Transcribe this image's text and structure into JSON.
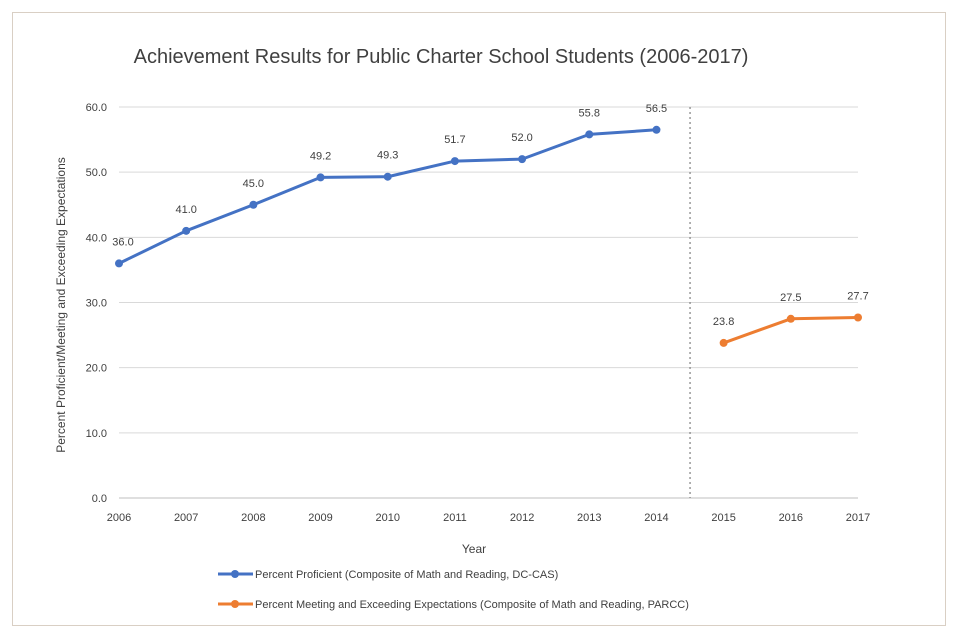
{
  "chart_data": {
    "type": "line",
    "title": "Achievement Results for Public Charter School Students (2006-2017)",
    "xlabel": "Year",
    "ylabel": "Percent Proficient/Meeting and Exceeding Expectations",
    "ylim": [
      0,
      60
    ],
    "yticks": [
      "0.0",
      "10.0",
      "20.0",
      "30.0",
      "40.0",
      "50.0",
      "60.0"
    ],
    "categories": [
      "2006",
      "2007",
      "2008",
      "2009",
      "2010",
      "2011",
      "2012",
      "2013",
      "2014",
      "2015",
      "2016",
      "2017"
    ],
    "grid": true,
    "legend_position": "bottom",
    "series": [
      {
        "name": "Percent Proficient (Composite of Math and Reading, DC-CAS)",
        "color": "#4472c4",
        "x": [
          "2006",
          "2007",
          "2008",
          "2009",
          "2010",
          "2011",
          "2012",
          "2013",
          "2014"
        ],
        "values": [
          36.0,
          41.0,
          45.0,
          49.2,
          49.3,
          51.7,
          52.0,
          55.8,
          56.5
        ],
        "labels": [
          "36.0",
          "41.0",
          "45.0",
          "49.2",
          "49.3",
          "51.7",
          "52.0",
          "55.8",
          "56.5"
        ]
      },
      {
        "name": "Percent Meeting and Exceeding Expectations (Composite of Math and Reading, PARCC)",
        "color": "#ed7d31",
        "x": [
          "2015",
          "2016",
          "2017"
        ],
        "values": [
          23.8,
          27.5,
          27.7
        ],
        "labels": [
          "23.8",
          "27.5",
          "27.7"
        ]
      }
    ],
    "divider": {
      "between": [
        "2014",
        "2015"
      ],
      "style": "dotted"
    }
  }
}
